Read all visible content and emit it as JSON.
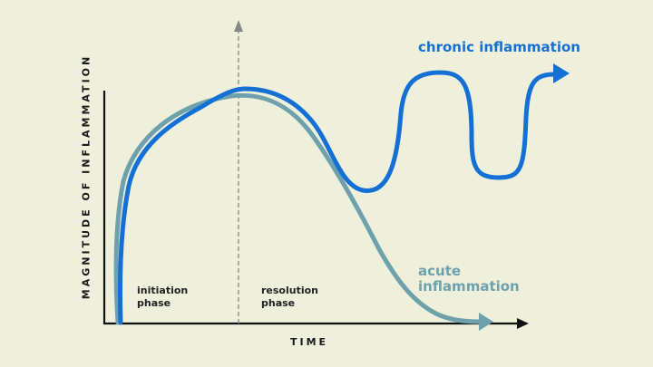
{
  "chart_data": {
    "type": "line",
    "title": "",
    "xlabel": "TIME",
    "ylabel": "MAGNITUDE OF INFLAMMATION",
    "phases": [
      {
        "line1": "initiation",
        "line2": "phase"
      },
      {
        "line1": "resolution",
        "line2": "phase"
      }
    ],
    "series": [
      {
        "name": "chronic inflammation",
        "color": "#1570d6"
      },
      {
        "name": "acute inflammation",
        "line1": "acute",
        "line2": "inflammation",
        "color": "#6fa1ad"
      }
    ],
    "colors": {
      "background": "#eef0dc",
      "axis": "#111111",
      "divider": "#888888"
    }
  }
}
